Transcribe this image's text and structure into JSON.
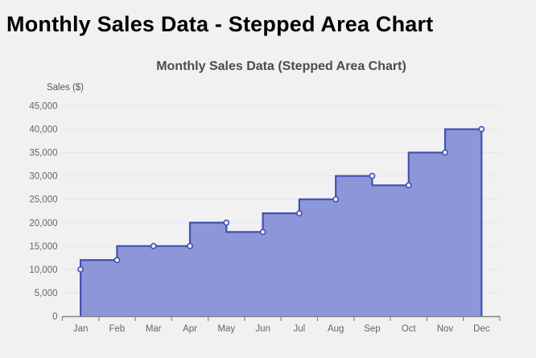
{
  "page": {
    "heading": "Monthly Sales Data - Stepped Area Chart"
  },
  "chart_data": {
    "type": "area",
    "subtype": "stepped-area",
    "step_mode": "before",
    "title": "Monthly Sales Data (Stepped Area Chart)",
    "xlabel": "",
    "ylabel": "Sales ($)",
    "categories": [
      "Jan",
      "Feb",
      "Mar",
      "Apr",
      "May",
      "Jun",
      "Jul",
      "Aug",
      "Sep",
      "Oct",
      "Nov",
      "Dec"
    ],
    "series": [
      {
        "name": "Sales",
        "values": [
          10000,
          12000,
          15000,
          15000,
          20000,
          18000,
          22000,
          25000,
          30000,
          28000,
          35000,
          40000
        ]
      }
    ],
    "ylim": [
      0,
      45000
    ],
    "ytick_interval": 5000,
    "ytick_labels": [
      "0",
      "5,000",
      "10,000",
      "15,000",
      "20,000",
      "25,000",
      "30,000",
      "35,000",
      "40,000",
      "45,000"
    ],
    "grid": true,
    "legend": "none",
    "markers": true,
    "colors": {
      "page_bg": "#f1f1f2",
      "area_fill": "#8d96d8",
      "step_line": "#4151b2",
      "marker_fill": "#eef0fa",
      "marker_stroke": "#4151b2",
      "gridline": "#e2e7f3",
      "axis_line": "#848484",
      "tick_text": "#63666d",
      "axis_title_text": "#55585e",
      "chart_title_text": "#4c4c4c",
      "heading_text": "#000000"
    }
  }
}
